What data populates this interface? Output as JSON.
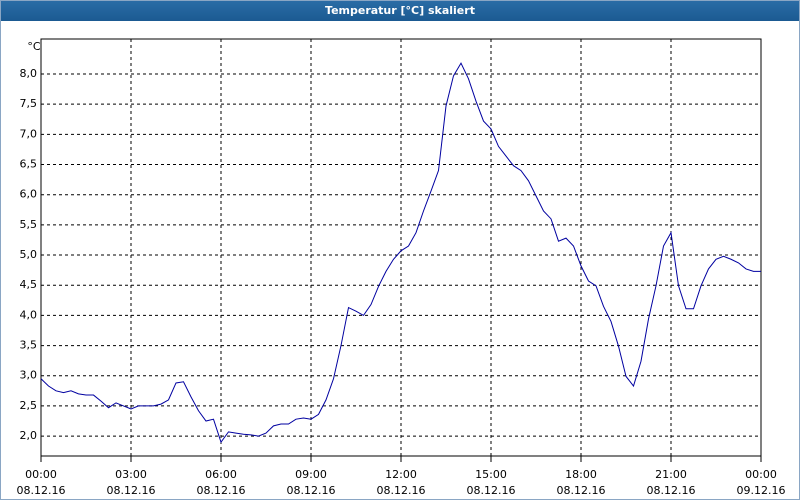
{
  "chart_data": {
    "type": "line",
    "title": "Temperatur [°C] skaliert",
    "y_unit": "°C",
    "x": [
      0,
      0.25,
      0.5,
      0.75,
      1,
      1.25,
      1.5,
      1.75,
      2,
      2.25,
      2.5,
      2.75,
      3,
      3.25,
      3.5,
      3.75,
      4,
      4.25,
      4.5,
      4.75,
      5,
      5.25,
      5.5,
      5.75,
      6,
      6.25,
      6.5,
      6.75,
      7,
      7.25,
      7.5,
      7.75,
      8,
      8.25,
      8.5,
      8.75,
      9,
      9.25,
      9.5,
      9.75,
      10,
      10.25,
      10.5,
      10.75,
      11,
      11.25,
      11.5,
      11.75,
      12,
      12.25,
      12.5,
      12.75,
      13,
      13.25,
      13.5,
      13.75,
      14,
      14.25,
      14.5,
      14.75,
      15,
      15.25,
      15.5,
      15.75,
      16,
      16.25,
      16.5,
      16.75,
      17,
      17.25,
      17.5,
      17.75,
      18,
      18.25,
      18.5,
      18.75,
      19,
      19.25,
      19.5,
      19.75,
      20,
      20.25,
      20.5,
      20.75,
      21,
      21.25,
      21.5,
      21.75,
      22,
      22.25,
      22.5,
      22.75,
      23,
      23.25,
      23.5,
      23.75,
      24
    ],
    "series": [
      {
        "name": "Temperatur",
        "color": "#0000a0",
        "values": [
          2.95,
          2.83,
          2.75,
          2.72,
          2.75,
          2.7,
          2.68,
          2.68,
          2.58,
          2.47,
          2.55,
          2.5,
          2.45,
          2.5,
          2.5,
          2.5,
          2.53,
          2.6,
          2.88,
          2.9,
          2.65,
          2.42,
          2.25,
          2.28,
          1.9,
          2.07,
          2.05,
          2.03,
          2.02,
          2.0,
          2.05,
          2.17,
          2.2,
          2.2,
          2.28,
          2.3,
          2.28,
          2.36,
          2.6,
          2.95,
          3.5,
          4.13,
          4.07,
          4.0,
          4.18,
          4.48,
          4.73,
          4.93,
          5.07,
          5.15,
          5.37,
          5.73,
          6.06,
          6.4,
          7.47,
          7.97,
          8.18,
          7.92,
          7.55,
          7.22,
          7.09,
          6.8,
          6.64,
          6.48,
          6.4,
          6.23,
          5.98,
          5.73,
          5.6,
          5.23,
          5.28,
          5.15,
          4.82,
          4.57,
          4.49,
          4.15,
          3.9,
          3.49,
          2.99,
          2.83,
          3.24,
          3.94,
          4.49,
          5.15,
          5.37,
          4.49,
          4.11,
          4.11,
          4.49,
          4.77,
          4.93,
          4.98,
          4.93,
          4.87,
          4.77,
          4.73,
          4.73
        ]
      }
    ],
    "xlim": [
      0,
      24
    ],
    "xticks": [
      {
        "value": 0,
        "label": "00:00",
        "date": "08.12.16"
      },
      {
        "value": 3,
        "label": "03:00",
        "date": "08.12.16"
      },
      {
        "value": 6,
        "label": "06:00",
        "date": "08.12.16"
      },
      {
        "value": 9,
        "label": "09:00",
        "date": "08.12.16"
      },
      {
        "value": 12,
        "label": "12:00",
        "date": "08.12.16"
      },
      {
        "value": 15,
        "label": "15:00",
        "date": "08.12.16"
      },
      {
        "value": 18,
        "label": "18:00",
        "date": "08.12.16"
      },
      {
        "value": 21,
        "label": "21:00",
        "date": "08.12.16"
      },
      {
        "value": 24,
        "label": "00:00",
        "date": "09.12.16"
      }
    ],
    "ylim": [
      1.67,
      8.58
    ],
    "yticks": [
      {
        "value": 2.0,
        "label": "2,0"
      },
      {
        "value": 2.5,
        "label": "2,5"
      },
      {
        "value": 3.0,
        "label": "3,0"
      },
      {
        "value": 3.5,
        "label": "3,5"
      },
      {
        "value": 4.0,
        "label": "4,0"
      },
      {
        "value": 4.5,
        "label": "4,5"
      },
      {
        "value": 5.0,
        "label": "5,0"
      },
      {
        "value": 5.5,
        "label": "5,5"
      },
      {
        "value": 6.0,
        "label": "6,0"
      },
      {
        "value": 6.5,
        "label": "6,5"
      },
      {
        "value": 7.0,
        "label": "7,0"
      },
      {
        "value": 7.5,
        "label": "7,5"
      },
      {
        "value": 8.0,
        "label": "8,0"
      }
    ],
    "grid": true
  }
}
